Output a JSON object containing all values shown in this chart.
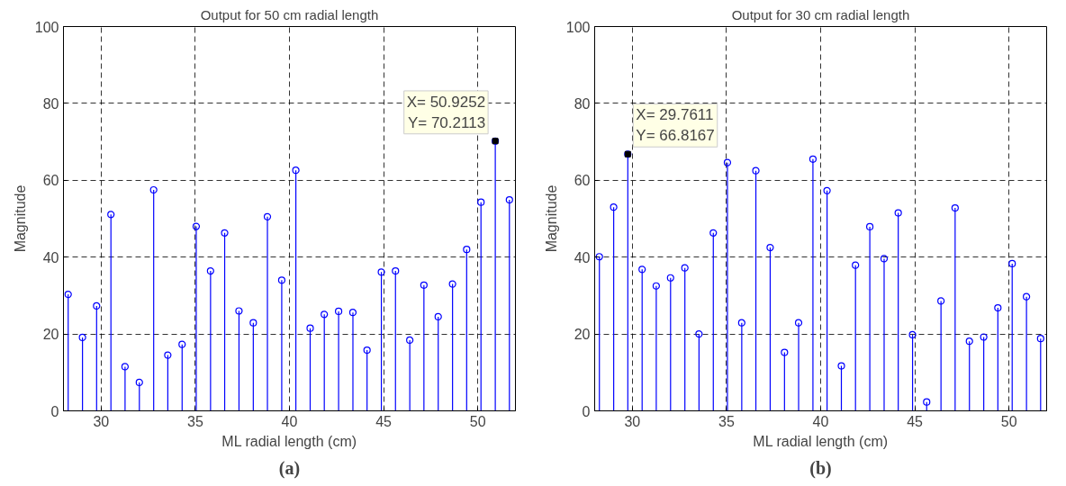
{
  "chart_data": [
    {
      "type": "lollipop",
      "title": "Output for 50 cm radial length",
      "xlabel": "ML radial length (cm)",
      "ylabel": "Magnitude",
      "x": [
        28.25,
        29.01,
        29.76,
        30.52,
        31.27,
        32.03,
        32.79,
        33.54,
        34.3,
        35.05,
        35.81,
        36.56,
        37.32,
        38.08,
        38.83,
        39.59,
        40.34,
        41.1,
        41.85,
        42.61,
        43.37,
        44.12,
        44.88,
        45.63,
        46.39,
        47.14,
        47.9,
        48.66,
        49.41,
        50.17,
        50.93,
        51.68
      ],
      "series": [
        {
          "color": "#0000ff",
          "values": [
            30.3,
            19.1,
            27.3,
            51.1,
            11.5,
            7.4,
            57.5,
            14.5,
            17.3,
            48.0,
            36.4,
            46.3,
            26.0,
            22.9,
            50.5,
            34.0,
            62.6,
            21.5,
            25.1,
            25.9,
            25.6,
            15.8,
            36.1,
            36.4,
            18.4,
            32.7,
            24.5,
            33.0,
            42.0,
            54.3,
            70.2,
            54.9
          ]
        }
      ],
      "xlim": [
        28,
        52
      ],
      "ylim": [
        0,
        100
      ],
      "xticks": [
        30,
        35,
        40,
        45,
        50
      ],
      "yticks": [
        0,
        20,
        40,
        60,
        80,
        100
      ],
      "grid": true,
      "marker": "circle",
      "annotations": [
        {
          "text": "X= 50.9252\nY= 70.2113",
          "x": 50.93,
          "y": 70.2
        },
        "(a)"
      ]
    },
    {
      "type": "lollipop",
      "title": "Output for 30 cm radial length",
      "xlabel": "ML radial length (cm)",
      "ylabel": "Magnitude",
      "x": [
        28.25,
        29.01,
        29.76,
        30.52,
        31.27,
        32.03,
        32.79,
        33.54,
        34.3,
        35.05,
        35.81,
        36.56,
        37.32,
        38.08,
        38.83,
        39.59,
        40.34,
        41.1,
        41.85,
        42.61,
        43.37,
        44.12,
        44.88,
        45.63,
        46.39,
        47.14,
        47.9,
        48.66,
        49.41,
        50.17,
        50.93,
        51.68
      ],
      "series": [
        {
          "color": "#0000ff",
          "values": [
            40.1,
            53.0,
            66.8,
            36.8,
            32.5,
            34.6,
            37.2,
            20.0,
            46.3,
            64.6,
            22.9,
            62.5,
            42.5,
            15.2,
            22.9,
            65.5,
            57.3,
            11.7,
            37.9,
            47.9,
            39.6,
            51.5,
            19.8,
            2.3,
            28.6,
            52.8,
            18.1,
            19.2,
            26.8,
            38.3,
            29.7,
            18.8
          ]
        }
      ],
      "xlim": [
        28,
        52
      ],
      "ylim": [
        0,
        100
      ],
      "xticks": [
        30,
        35,
        40,
        45,
        50
      ],
      "yticks": [
        0,
        20,
        40,
        60,
        80,
        100
      ],
      "grid": true,
      "marker": "circle",
      "annotations": [
        {
          "text": "X= 29.7611\nY= 66.8167",
          "x": 29.76,
          "y": 66.8
        },
        "(b)"
      ]
    }
  ]
}
